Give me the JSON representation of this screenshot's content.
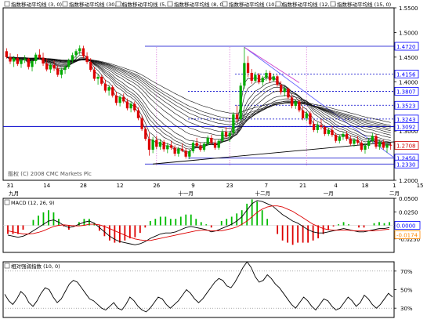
{
  "chart_data": [
    {
      "type": "line",
      "panel": "price",
      "legend": [
        {
          "label": "指数移动平均线 (3, 0)"
        },
        {
          "label": "指数移动平均线 (30, 0)"
        },
        {
          "label": "指数移动平均线 (5, 0)"
        },
        {
          "label": "指数移动平均线 (8, 0)"
        },
        {
          "label": "指数移动平均线 (10, 0)"
        },
        {
          "label": "指数移动平均线 (12, 0)"
        },
        {
          "label": "指数移动平均线 (15, 0)"
        }
      ],
      "watermark": "版权 (C) 2008 CMC Markets Plc",
      "ylim": [
        1.2,
        1.55
      ],
      "y_ticks": [
        "1.5500",
        "1.5000",
        "1.4500",
        "1.4000",
        "1.3500",
        "1.3000",
        "1.2500",
        "1.2000"
      ],
      "y_tick_values": [
        1.55,
        1.5,
        1.45,
        1.4,
        1.35,
        1.3,
        1.25,
        1.2
      ],
      "badges": [
        {
          "text": "1.4720",
          "value": 1.472,
          "color": "#0000ff"
        },
        {
          "text": "1.4156",
          "value": 1.4156,
          "color": "#0000ff"
        },
        {
          "text": "1.3807",
          "value": 1.3807,
          "color": "#0000ff"
        },
        {
          "text": "1.3523",
          "value": 1.3523,
          "color": "#0000ff"
        },
        {
          "text": "1.3243",
          "value": 1.3243,
          "color": "#0000ff"
        },
        {
          "text": "1.3092",
          "value": 1.3092,
          "color": "#0000ff"
        },
        {
          "text": "1.2708",
          "value": 1.2708,
          "color": "#cc0000"
        },
        {
          "text": "1.2450",
          "value": 1.245,
          "color": "#0000ff"
        },
        {
          "text": "1.2330",
          "value": 1.233,
          "color": "#0000ff"
        }
      ],
      "horizontal_lines": [
        1.472,
        1.4156,
        1.3807,
        1.3523,
        1.3243,
        1.3092,
        1.245,
        1.233
      ],
      "candles": [
        [
          1.462,
          1.468,
          1.447,
          1.45
        ],
        [
          1.45,
          1.458,
          1.436,
          1.441
        ],
        [
          1.441,
          1.452,
          1.43,
          1.448
        ],
        [
          1.448,
          1.456,
          1.432,
          1.436
        ],
        [
          1.436,
          1.446,
          1.428,
          1.444
        ],
        [
          1.444,
          1.454,
          1.438,
          1.447
        ],
        [
          1.447,
          1.449,
          1.425,
          1.43
        ],
        [
          1.43,
          1.445,
          1.421,
          1.442
        ],
        [
          1.442,
          1.459,
          1.436,
          1.455
        ],
        [
          1.455,
          1.466,
          1.446,
          1.449
        ],
        [
          1.449,
          1.459,
          1.432,
          1.437
        ],
        [
          1.437,
          1.447,
          1.421,
          1.425
        ],
        [
          1.425,
          1.438,
          1.418,
          1.434
        ],
        [
          1.434,
          1.443,
          1.422,
          1.427
        ],
        [
          1.427,
          1.433,
          1.41,
          1.414
        ],
        [
          1.414,
          1.428,
          1.407,
          1.424
        ],
        [
          1.424,
          1.434,
          1.416,
          1.43
        ],
        [
          1.43,
          1.447,
          1.426,
          1.443
        ],
        [
          1.443,
          1.459,
          1.438,
          1.454
        ],
        [
          1.454,
          1.466,
          1.447,
          1.462
        ],
        [
          1.462,
          1.474,
          1.455,
          1.468
        ],
        [
          1.468,
          1.473,
          1.448,
          1.452
        ],
        [
          1.452,
          1.46,
          1.436,
          1.44
        ],
        [
          1.44,
          1.448,
          1.42,
          1.424
        ],
        [
          1.424,
          1.43,
          1.402,
          1.406
        ],
        [
          1.406,
          1.416,
          1.394,
          1.41
        ],
        [
          1.41,
          1.414,
          1.392,
          1.396
        ],
        [
          1.396,
          1.404,
          1.378,
          1.382
        ],
        [
          1.382,
          1.394,
          1.372,
          1.389
        ],
        [
          1.389,
          1.393,
          1.368,
          1.372
        ],
        [
          1.372,
          1.38,
          1.352,
          1.357
        ],
        [
          1.357,
          1.373,
          1.35,
          1.369
        ],
        [
          1.369,
          1.376,
          1.356,
          1.36
        ],
        [
          1.36,
          1.366,
          1.342,
          1.346
        ],
        [
          1.346,
          1.359,
          1.338,
          1.355
        ],
        [
          1.355,
          1.36,
          1.338,
          1.342
        ],
        [
          1.342,
          1.348,
          1.322,
          1.326
        ],
        [
          1.326,
          1.332,
          1.3,
          1.304
        ],
        [
          1.304,
          1.31,
          1.28,
          1.284
        ],
        [
          1.284,
          1.296,
          1.25,
          1.262
        ],
        [
          1.262,
          1.288,
          1.255,
          1.282
        ],
        [
          1.282,
          1.29,
          1.263,
          1.268
        ],
        [
          1.268,
          1.284,
          1.262,
          1.278
        ],
        [
          1.278,
          1.282,
          1.258,
          1.263
        ],
        [
          1.263,
          1.276,
          1.255,
          1.271
        ],
        [
          1.271,
          1.28,
          1.262,
          1.266
        ],
        [
          1.266,
          1.271,
          1.249,
          1.254
        ],
        [
          1.254,
          1.268,
          1.248,
          1.264
        ],
        [
          1.264,
          1.275,
          1.257,
          1.26
        ],
        [
          1.26,
          1.265,
          1.244,
          1.248
        ],
        [
          1.248,
          1.262,
          1.243,
          1.259
        ],
        [
          1.259,
          1.28,
          1.255,
          1.276
        ],
        [
          1.276,
          1.286,
          1.266,
          1.27
        ],
        [
          1.27,
          1.276,
          1.258,
          1.262
        ],
        [
          1.262,
          1.278,
          1.258,
          1.274
        ],
        [
          1.274,
          1.291,
          1.27,
          1.286
        ],
        [
          1.286,
          1.292,
          1.272,
          1.276
        ],
        [
          1.276,
          1.282,
          1.262,
          1.266
        ],
        [
          1.266,
          1.284,
          1.262,
          1.28
        ],
        [
          1.28,
          1.304,
          1.276,
          1.298
        ],
        [
          1.298,
          1.308,
          1.284,
          1.289
        ],
        [
          1.289,
          1.3,
          1.278,
          1.296
        ],
        [
          1.296,
          1.338,
          1.292,
          1.334
        ],
        [
          1.334,
          1.352,
          1.318,
          1.324
        ],
        [
          1.324,
          1.398,
          1.32,
          1.392
        ],
        [
          1.392,
          1.47,
          1.385,
          1.438
        ],
        [
          1.438,
          1.452,
          1.41,
          1.418
        ],
        [
          1.418,
          1.426,
          1.396,
          1.402
        ],
        [
          1.402,
          1.42,
          1.398,
          1.414
        ],
        [
          1.414,
          1.418,
          1.395,
          1.399
        ],
        [
          1.399,
          1.412,
          1.392,
          1.408
        ],
        [
          1.408,
          1.424,
          1.402,
          1.418
        ],
        [
          1.418,
          1.422,
          1.398,
          1.403
        ],
        [
          1.403,
          1.416,
          1.4,
          1.411
        ],
        [
          1.411,
          1.414,
          1.39,
          1.394
        ],
        [
          1.394,
          1.401,
          1.374,
          1.379
        ],
        [
          1.379,
          1.39,
          1.37,
          1.386
        ],
        [
          1.386,
          1.388,
          1.364,
          1.368
        ],
        [
          1.368,
          1.374,
          1.346,
          1.351
        ],
        [
          1.351,
          1.364,
          1.345,
          1.36
        ],
        [
          1.36,
          1.364,
          1.338,
          1.342
        ],
        [
          1.342,
          1.35,
          1.322,
          1.326
        ],
        [
          1.326,
          1.34,
          1.32,
          1.336
        ],
        [
          1.336,
          1.34,
          1.31,
          1.314
        ],
        [
          1.314,
          1.322,
          1.298,
          1.302
        ],
        [
          1.302,
          1.318,
          1.296,
          1.312
        ],
        [
          1.312,
          1.324,
          1.303,
          1.308
        ],
        [
          1.308,
          1.312,
          1.29,
          1.294
        ],
        [
          1.294,
          1.306,
          1.29,
          1.302
        ],
        [
          1.302,
          1.31,
          1.288,
          1.292
        ],
        [
          1.292,
          1.296,
          1.276,
          1.28
        ],
        [
          1.28,
          1.292,
          1.275,
          1.288
        ],
        [
          1.288,
          1.298,
          1.282,
          1.294
        ],
        [
          1.294,
          1.3,
          1.28,
          1.284
        ],
        [
          1.284,
          1.29,
          1.27,
          1.274
        ],
        [
          1.274,
          1.286,
          1.268,
          1.282
        ],
        [
          1.282,
          1.29,
          1.272,
          1.276
        ],
        [
          1.276,
          1.28,
          1.258,
          1.262
        ],
        [
          1.262,
          1.276,
          1.254,
          1.27
        ],
        [
          1.27,
          1.286,
          1.264,
          1.28
        ],
        [
          1.28,
          1.296,
          1.276,
          1.29
        ],
        [
          1.29,
          1.294,
          1.264,
          1.268
        ],
        [
          1.268,
          1.282,
          1.262,
          1.278
        ],
        [
          1.278,
          1.282,
          1.262,
          1.266
        ],
        [
          1.266,
          1.276,
          1.256,
          1.272
        ],
        [
          1.272,
          1.276,
          1.262,
          1.271
        ]
      ],
      "date_labels": [
        {
          "text": "31",
          "index": 1
        },
        {
          "text": "14",
          "index": 11
        },
        {
          "text": "28",
          "index": 21
        },
        {
          "text": "12",
          "index": 31
        },
        {
          "text": "26",
          "index": 41
        },
        {
          "text": "9",
          "index": 51
        },
        {
          "text": "23",
          "index": 61
        },
        {
          "text": "7",
          "index": 71
        },
        {
          "text": "21",
          "index": 81
        },
        {
          "text": "4",
          "index": 90
        },
        {
          "text": "18",
          "index": 98
        },
        {
          "text": "1",
          "index": 106
        },
        {
          "text": "15",
          "index": 113
        }
      ],
      "month_labels": [
        {
          "text": "九月",
          "index": 2
        },
        {
          "text": "十一月",
          "index": 49
        },
        {
          "text": "十二月",
          "index": 70
        },
        {
          "text": "一月",
          "index": 88
        },
        {
          "text": "二月",
          "index": 106
        }
      ]
    },
    {
      "type": "line",
      "panel": "macd",
      "legend": [
        {
          "label": "MACD (12, 26, 9)"
        }
      ],
      "ylim": [
        -0.05,
        0.05
      ],
      "y_ticks": [
        "0.0500",
        "0.0250",
        "0.0000",
        "-0.0250"
      ],
      "y_tick_values": [
        0.05,
        0.025,
        0,
        -0.025
      ],
      "badges": [
        {
          "text": "0.0000",
          "value": 0.0,
          "color": "#0000ff"
        },
        {
          "text": "-0.0174",
          "value": -0.0174,
          "color": "#ff8800"
        }
      ],
      "series": [
        {
          "role": "macd",
          "values": [
            -0.018,
            -0.02,
            -0.022,
            -0.02,
            -0.016,
            -0.01,
            -0.004,
            0.002,
            0.008,
            0.01,
            0.006,
            0.0,
            -0.004,
            -0.002,
            0.002,
            0.006,
            0.008,
            0.004,
            -0.004,
            -0.012,
            -0.02,
            -0.026,
            -0.03,
            -0.032,
            -0.034,
            -0.036,
            -0.034,
            -0.03,
            -0.024,
            -0.02,
            -0.016,
            -0.014,
            -0.014,
            -0.012,
            -0.008,
            -0.004,
            -0.002,
            -0.004,
            -0.006,
            -0.008,
            -0.012,
            -0.01,
            -0.006,
            -0.002,
            0.002,
            0.008,
            0.016,
            0.028,
            0.04,
            0.046,
            0.044,
            0.04,
            0.036,
            0.028,
            0.02,
            0.014,
            0.008,
            0.004,
            -0.002,
            -0.008,
            -0.012,
            -0.014,
            -0.014,
            -0.012,
            -0.01,
            -0.008,
            -0.006,
            -0.008,
            -0.01,
            -0.012,
            -0.012,
            -0.01,
            -0.008,
            -0.006,
            -0.006,
            -0.004
          ]
        },
        {
          "role": "signal",
          "values": [
            -0.01,
            -0.012,
            -0.014,
            -0.016,
            -0.016,
            -0.015,
            -0.013,
            -0.01,
            -0.006,
            -0.002,
            0.0,
            0.001,
            0.0,
            -0.001,
            -0.001,
            0.0,
            0.002,
            0.002,
            0.001,
            -0.002,
            -0.006,
            -0.01,
            -0.014,
            -0.018,
            -0.022,
            -0.025,
            -0.027,
            -0.028,
            -0.028,
            -0.026,
            -0.024,
            -0.022,
            -0.02,
            -0.018,
            -0.016,
            -0.014,
            -0.012,
            -0.01,
            -0.009,
            -0.009,
            -0.01,
            -0.01,
            -0.01,
            -0.008,
            -0.006,
            -0.003,
            0.002,
            0.008,
            0.016,
            0.024,
            0.03,
            0.034,
            0.036,
            0.036,
            0.034,
            0.03,
            0.026,
            0.02,
            0.014,
            0.008,
            0.002,
            -0.002,
            -0.006,
            -0.008,
            -0.009,
            -0.009,
            -0.009,
            -0.009,
            -0.01,
            -0.01,
            -0.01,
            -0.01,
            -0.01,
            -0.009,
            -0.008,
            -0.007
          ]
        }
      ]
    },
    {
      "type": "line",
      "panel": "rsi",
      "legend": [
        {
          "label": "相对强弱指数 (10, 0)"
        }
      ],
      "ylim": [
        20,
        80
      ],
      "y_ticks": [
        "70%",
        "50%",
        "30%"
      ],
      "y_tick_values": [
        70,
        50,
        30
      ],
      "series": [
        {
          "role": "rsi",
          "values": [
            45,
            38,
            34,
            40,
            48,
            44,
            36,
            32,
            38,
            46,
            52,
            50,
            42,
            36,
            40,
            48,
            56,
            60,
            58,
            52,
            46,
            40,
            38,
            34,
            30,
            28,
            32,
            36,
            30,
            28,
            34,
            42,
            38,
            32,
            28,
            26,
            30,
            36,
            42,
            40,
            34,
            30,
            34,
            38,
            44,
            50,
            46,
            40,
            36,
            40,
            46,
            52,
            58,
            62,
            60,
            54,
            52,
            58,
            66,
            74,
            80,
            74,
            64,
            58,
            60,
            66,
            62,
            56,
            52,
            46,
            40,
            34,
            30,
            36,
            42,
            38,
            32,
            28,
            34,
            40,
            38,
            32,
            28,
            30,
            36,
            42,
            38,
            32,
            36,
            44,
            40,
            34,
            30,
            34,
            40,
            46,
            42
          ]
        }
      ]
    }
  ]
}
